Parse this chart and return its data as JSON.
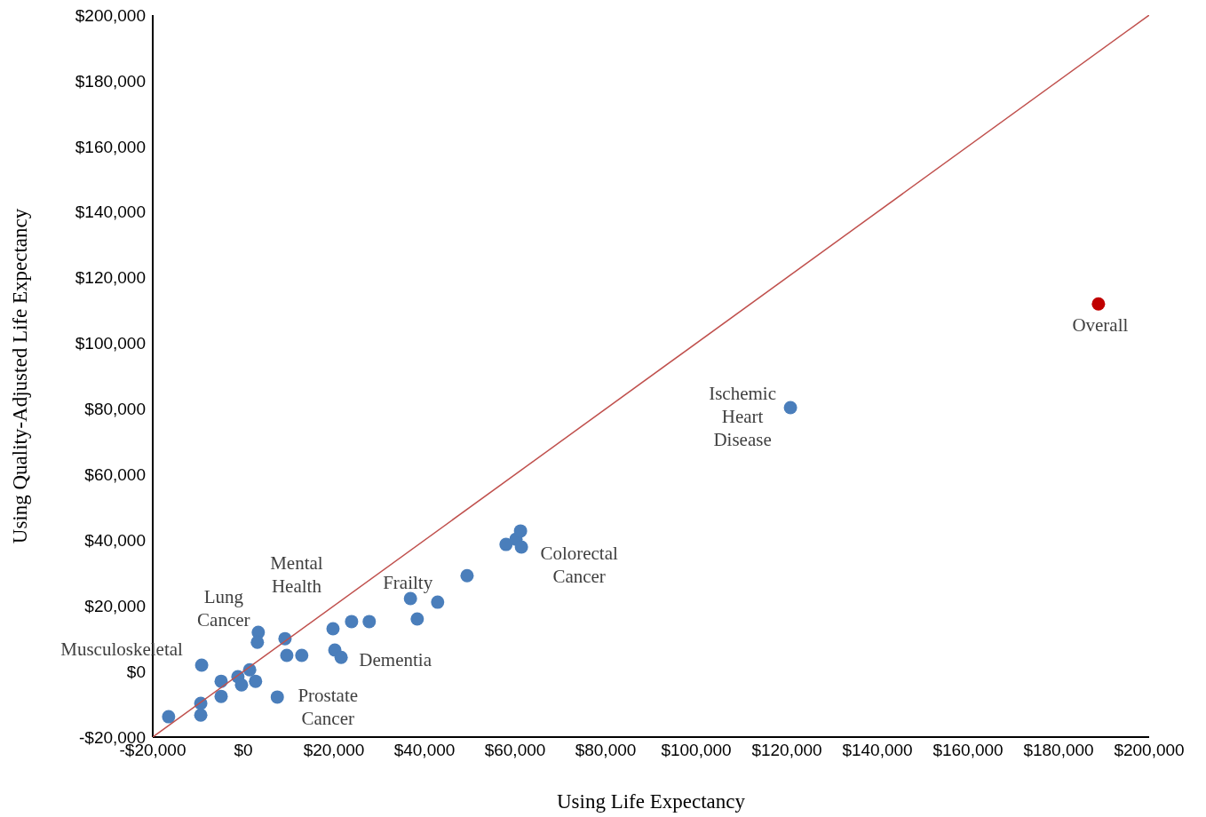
{
  "chart_data": {
    "type": "scatter",
    "xlabel": "Using Life Expectancy",
    "ylabel": "Using Quality-Adjusted Life Expectancy",
    "series": [
      {
        "color": "#4a7ebb",
        "marker": "circle",
        "x": [
          -16500,
          -9200,
          -9400,
          -9400,
          -4900,
          -4900,
          -1200,
          -400,
          1400,
          2700,
          3300,
          3100,
          7500,
          9200,
          9600,
          12900,
          19800,
          20200,
          21600,
          23900,
          27800,
          36900,
          38400,
          42900,
          49400,
          58000,
          60200,
          61200,
          61400,
          120800
        ],
        "values": [
          -13800,
          1900,
          -9700,
          -13300,
          -3000,
          -7600,
          -1600,
          -4100,
          500,
          -3000,
          11900,
          8900,
          -7800,
          10000,
          4900,
          4900,
          13000,
          6500,
          4300,
          15200,
          15200,
          22200,
          16000,
          21100,
          29200,
          38700,
          40300,
          42800,
          37900,
          80400
        ]
      },
      {
        "color": "#c00000",
        "marker": "circle",
        "x": [
          188800
        ],
        "values": [
          112000
        ]
      },
      {
        "type": "line",
        "color": "#c0504d",
        "marker": "none",
        "x": [
          -20000,
          200000
        ],
        "values": [
          -20000,
          200000
        ]
      }
    ],
    "xlim": [
      -20000,
      200000
    ],
    "ylim": [
      -20000,
      200000
    ],
    "xticks": [
      {
        "value": -20000,
        "label": "-$20,000"
      },
      {
        "value": 0,
        "label": "$0"
      },
      {
        "value": 20000,
        "label": "$20,000"
      },
      {
        "value": 40000,
        "label": "$40,000"
      },
      {
        "value": 60000,
        "label": "$60,000"
      },
      {
        "value": 80000,
        "label": "$80,000"
      },
      {
        "value": 100000,
        "label": "$100,000"
      },
      {
        "value": 120000,
        "label": "$120,000"
      },
      {
        "value": 140000,
        "label": "$140,000"
      },
      {
        "value": 160000,
        "label": "$160,000"
      },
      {
        "value": 180000,
        "label": "$180,000"
      },
      {
        "value": 200000,
        "label": "$200,000"
      }
    ],
    "yticks": [
      {
        "value": -20000,
        "label": "-$20,000"
      },
      {
        "value": 0,
        "label": "$0"
      },
      {
        "value": 20000,
        "label": "$20,000"
      },
      {
        "value": 40000,
        "label": "$40,000"
      },
      {
        "value": 60000,
        "label": "$60,000"
      },
      {
        "value": 80000,
        "label": "$80,000"
      },
      {
        "value": 100000,
        "label": "$100,000"
      },
      {
        "value": 120000,
        "label": "$120,000"
      },
      {
        "value": 140000,
        "label": "$140,000"
      },
      {
        "value": 160000,
        "label": "$160,000"
      },
      {
        "value": 180000,
        "label": "$180,000"
      },
      {
        "value": 200000,
        "label": "$200,000"
      }
    ],
    "annotations": [
      {
        "text": "Musculoskeletal",
        "x": -9200,
        "y": 1900
      },
      {
        "text": "Lung\nCancer",
        "x": 3300,
        "y": 11900
      },
      {
        "text": "Mental\nHealth",
        "x": 9200,
        "y": 10000
      },
      {
        "text": "Frailty",
        "x": 36900,
        "y": 22200
      },
      {
        "text": "Dementia",
        "x": 21600,
        "y": 4300
      },
      {
        "text": "Prostate\nCancer",
        "x": 7500,
        "y": -7800
      },
      {
        "text": "Colorectal\nCancer",
        "x": 61400,
        "y": 37900
      },
      {
        "text": "Ischemic\nHeart\nDisease",
        "x": 120800,
        "y": 80400
      },
      {
        "text": "Overall",
        "x": 188800,
        "y": 112000
      }
    ],
    "grid": false,
    "line_style": "solid"
  }
}
